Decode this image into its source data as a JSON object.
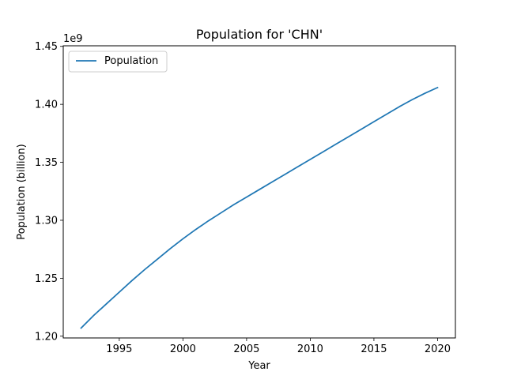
{
  "chart_data": {
    "type": "line",
    "title": "Population for 'CHN'",
    "xlabel": "Year",
    "ylabel": "Population (billion)",
    "y_offset_label": "1e9",
    "xlim": [
      1990.6,
      2021.4
    ],
    "ylim": [
      1.1985,
      1.4505
    ],
    "x_ticks": [
      1995,
      2000,
      2005,
      2010,
      2015,
      2020
    ],
    "x_tick_labels": [
      "1995",
      "2000",
      "2005",
      "2010",
      "2015",
      "2020"
    ],
    "y_ticks": [
      1.2,
      1.25,
      1.3,
      1.35,
      1.4,
      1.45
    ],
    "y_tick_labels": [
      "1.20",
      "1.25",
      "1.30",
      "1.35",
      "1.40",
      "1.45"
    ],
    "grid": false,
    "legend_position": "top-left",
    "series": [
      {
        "name": "Population",
        "color": "#1f77b4",
        "x": [
          1992,
          1993,
          1994,
          1995,
          1996,
          1997,
          1998,
          1999,
          2000,
          2001,
          2002,
          2003,
          2004,
          2005,
          2006,
          2007,
          2008,
          2009,
          2010,
          2011,
          2012,
          2013,
          2014,
          2015,
          2016,
          2017,
          2018,
          2019,
          2020
        ],
        "y": [
          1.207,
          1.218,
          1.228,
          1.238,
          1.248,
          1.2575,
          1.2665,
          1.2755,
          1.284,
          1.292,
          1.2995,
          1.3065,
          1.3135,
          1.32,
          1.3265,
          1.333,
          1.3395,
          1.346,
          1.3525,
          1.359,
          1.3655,
          1.372,
          1.3785,
          1.385,
          1.3915,
          1.398,
          1.404,
          1.4095,
          1.4145
        ]
      }
    ]
  }
}
